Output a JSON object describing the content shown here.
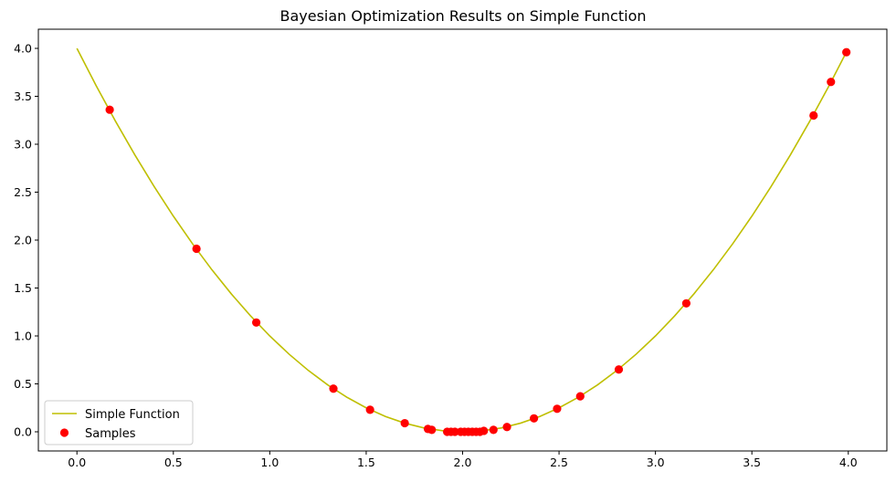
{
  "chart_data": {
    "type": "line",
    "title": "Bayesian Optimization Results on Simple Function",
    "xlabel": "",
    "ylabel": "",
    "xlim": [
      -0.2,
      4.2
    ],
    "ylim": [
      -0.2,
      4.2
    ],
    "xticks": [
      {
        "value": 0.0,
        "label": "0.0"
      },
      {
        "value": 0.5,
        "label": "0.5"
      },
      {
        "value": 1.0,
        "label": "1.0"
      },
      {
        "value": 1.5,
        "label": "1.5"
      },
      {
        "value": 2.0,
        "label": "2.0"
      },
      {
        "value": 2.5,
        "label": "2.5"
      },
      {
        "value": 3.0,
        "label": "3.0"
      },
      {
        "value": 3.5,
        "label": "3.5"
      },
      {
        "value": 4.0,
        "label": "4.0"
      }
    ],
    "yticks": [
      {
        "value": 0.0,
        "label": "0.0"
      },
      {
        "value": 0.5,
        "label": "0.5"
      },
      {
        "value": 1.0,
        "label": "1.0"
      },
      {
        "value": 1.5,
        "label": "1.5"
      },
      {
        "value": 2.0,
        "label": "2.0"
      },
      {
        "value": 2.5,
        "label": "2.5"
      },
      {
        "value": 3.0,
        "label": "3.0"
      },
      {
        "value": 3.5,
        "label": "3.5"
      },
      {
        "value": 4.0,
        "label": "4.0"
      }
    ],
    "grid": false,
    "legend_position": "lower-left",
    "series": [
      {
        "name": "Simple Function",
        "kind": "line",
        "color": "#bfbf00",
        "x": [
          0.0,
          0.1,
          0.2,
          0.3,
          0.4,
          0.5,
          0.6,
          0.7,
          0.8,
          0.9,
          1.0,
          1.1,
          1.2,
          1.3,
          1.4,
          1.5,
          1.6,
          1.7,
          1.8,
          1.9,
          2.0,
          2.1,
          2.2,
          2.3,
          2.4,
          2.5,
          2.6,
          2.7,
          2.8,
          2.9,
          3.0,
          3.1,
          3.2,
          3.3,
          3.4,
          3.5,
          3.6,
          3.7,
          3.8,
          3.9,
          4.0
        ],
        "y": [
          4.0,
          3.61,
          3.24,
          2.89,
          2.56,
          2.25,
          1.96,
          1.69,
          1.44,
          1.21,
          1.0,
          0.81,
          0.64,
          0.49,
          0.36,
          0.25,
          0.16,
          0.09,
          0.04,
          0.01,
          0.0,
          0.01,
          0.04,
          0.09,
          0.16,
          0.25,
          0.36,
          0.49,
          0.64,
          0.81,
          1.0,
          1.21,
          1.44,
          1.69,
          1.96,
          2.25,
          2.56,
          2.89,
          3.24,
          3.61,
          4.0
        ]
      },
      {
        "name": "Samples",
        "kind": "scatter",
        "color": "#ff0000",
        "points": [
          [
            0.17,
            3.36
          ],
          [
            0.62,
            1.91
          ],
          [
            0.93,
            1.14
          ],
          [
            1.33,
            0.45
          ],
          [
            1.52,
            0.23
          ],
          [
            1.7,
            0.09
          ],
          [
            1.82,
            0.03
          ],
          [
            1.84,
            0.02
          ],
          [
            1.92,
            0.0
          ],
          [
            1.94,
            0.0
          ],
          [
            1.96,
            0.0
          ],
          [
            1.99,
            0.0
          ],
          [
            2.01,
            0.0
          ],
          [
            2.03,
            0.0
          ],
          [
            2.05,
            0.0
          ],
          [
            2.07,
            0.0
          ],
          [
            2.09,
            0.0
          ],
          [
            2.11,
            0.01
          ],
          [
            2.16,
            0.02
          ],
          [
            2.23,
            0.05
          ],
          [
            2.37,
            0.14
          ],
          [
            2.49,
            0.24
          ],
          [
            2.61,
            0.37
          ],
          [
            2.81,
            0.65
          ],
          [
            3.16,
            1.34
          ],
          [
            3.82,
            3.3
          ],
          [
            3.91,
            3.65
          ],
          [
            3.99,
            3.96
          ]
        ]
      }
    ]
  }
}
